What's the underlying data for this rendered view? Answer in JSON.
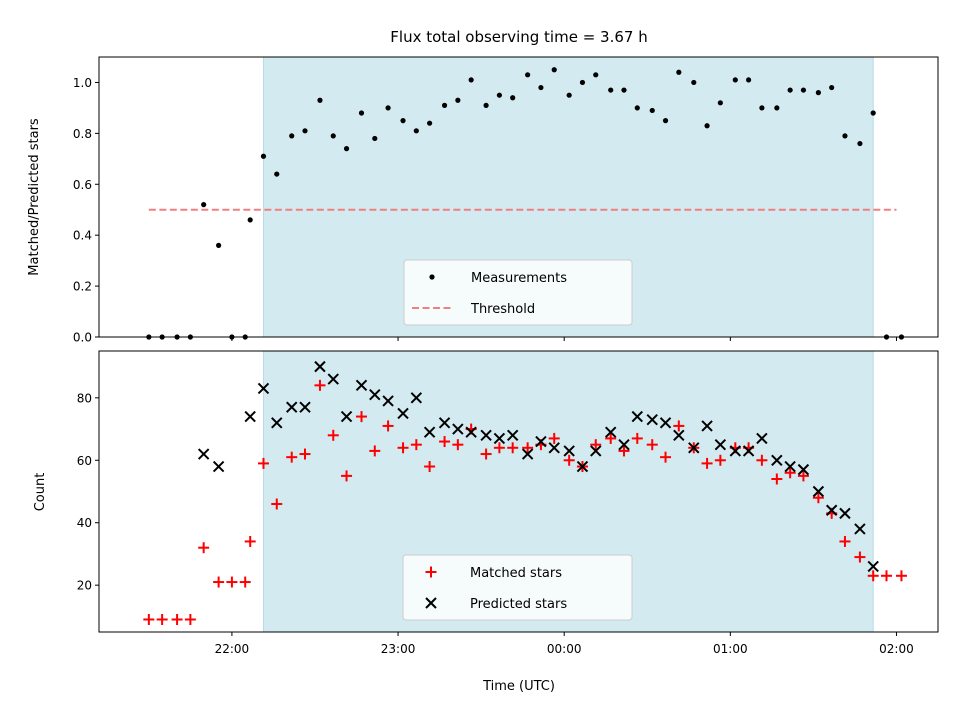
{
  "chart_data": [
    {
      "type": "scatter",
      "title": "Flux total observing time = 3.67 h",
      "xlabel": "",
      "ylabel": "Matched/Predicted stars",
      "xlim_hours": [
        21.2,
        26.25
      ],
      "ylim": [
        0,
        1.1
      ],
      "yticks": [
        0.0,
        0.2,
        0.4,
        0.6,
        0.8,
        1.0
      ],
      "ytick_labels": [
        "0.0",
        "0.2",
        "0.4",
        "0.6",
        "0.8",
        "1.0"
      ],
      "xticks_hours": [
        22,
        23,
        24,
        25,
        26
      ],
      "shaded_span_hours": [
        22.19,
        25.86
      ],
      "shaded_color": "#d3eaf0",
      "threshold": {
        "label": "Threshold",
        "value": 0.5,
        "x_range_hours": [
          21.5,
          26.0
        ],
        "color": "#f08080"
      },
      "legend": {
        "placement": "lower-center",
        "entries": [
          "Measurements",
          "Threshold"
        ]
      },
      "series": [
        {
          "name": "Measurements",
          "color": "#000000",
          "x": [
            21.5,
            21.58,
            21.67,
            21.75,
            21.83,
            21.92,
            22.0,
            22.08,
            22.11,
            22.19,
            22.27,
            22.36,
            22.44,
            22.53,
            22.61,
            22.69,
            22.78,
            22.86,
            22.94,
            23.03,
            23.11,
            23.19,
            23.28,
            23.36,
            23.44,
            23.53,
            23.61,
            23.69,
            23.78,
            23.86,
            23.94,
            24.03,
            24.11,
            24.19,
            24.28,
            24.36,
            24.44,
            24.53,
            24.61,
            24.69,
            24.78,
            24.86,
            24.94,
            25.03,
            25.11,
            25.19,
            25.28,
            25.36,
            25.44,
            25.53,
            25.61,
            25.69,
            25.78,
            25.86,
            25.94,
            26.03
          ],
          "y": [
            0.0,
            0.0,
            0.0,
            0.0,
            0.52,
            0.36,
            0.0,
            0.0,
            0.46,
            0.71,
            0.64,
            0.79,
            0.81,
            0.93,
            0.79,
            0.74,
            0.88,
            0.78,
            0.9,
            0.85,
            0.81,
            0.84,
            0.91,
            0.93,
            1.01,
            0.91,
            0.95,
            0.94,
            1.03,
            0.98,
            1.05,
            0.95,
            1.0,
            1.03,
            0.97,
            0.97,
            0.9,
            0.89,
            0.85,
            1.04,
            1.0,
            0.83,
            0.92,
            1.01,
            1.01,
            0.9,
            0.9,
            0.97,
            0.97,
            0.96,
            0.98,
            0.79,
            0.76,
            0.88,
            0.0,
            0.0
          ]
        }
      ]
    },
    {
      "type": "scatter",
      "title": "",
      "xlabel": "Time (UTC)",
      "ylabel": "Count",
      "xlim_hours": [
        21.2,
        26.25
      ],
      "ylim": [
        5,
        95
      ],
      "yticks": [
        20,
        40,
        60,
        80
      ],
      "ytick_labels": [
        "20",
        "40",
        "60",
        "80"
      ],
      "xticks_hours": [
        22,
        23,
        24,
        25,
        26
      ],
      "xtick_labels": [
        "22:00",
        "23:00",
        "00:00",
        "01:00",
        "02:00"
      ],
      "shaded_span_hours": [
        22.19,
        25.86
      ],
      "shaded_color": "#d3eaf0",
      "legend": {
        "placement": "lower-center",
        "entries": [
          "Matched stars",
          "Predicted stars"
        ]
      },
      "series": [
        {
          "name": "Matched stars",
          "marker": "plus",
          "color": "#ff0000",
          "x": [
            21.5,
            21.58,
            21.67,
            21.75,
            21.83,
            21.92,
            22.0,
            22.08,
            22.11,
            22.19,
            22.27,
            22.36,
            22.44,
            22.53,
            22.61,
            22.69,
            22.78,
            22.86,
            22.94,
            23.03,
            23.11,
            23.19,
            23.28,
            23.36,
            23.44,
            23.53,
            23.61,
            23.69,
            23.78,
            23.86,
            23.94,
            24.03,
            24.11,
            24.19,
            24.28,
            24.36,
            24.44,
            24.53,
            24.61,
            24.69,
            24.78,
            24.86,
            24.94,
            25.03,
            25.11,
            25.19,
            25.28,
            25.36,
            25.44,
            25.53,
            25.61,
            25.69,
            25.78,
            25.86,
            25.94,
            26.03
          ],
          "y": [
            9,
            9,
            9,
            9,
            32,
            21,
            21,
            21,
            34,
            59,
            46,
            61,
            62,
            84,
            68,
            55,
            74,
            63,
            71,
            64,
            65,
            58,
            66,
            65,
            70,
            62,
            64,
            64,
            64,
            65,
            67,
            60,
            58,
            65,
            67,
            63,
            67,
            65,
            61,
            71,
            64,
            59,
            60,
            64,
            64,
            60,
            54,
            56,
            55,
            48,
            43,
            34,
            29,
            23,
            23,
            23
          ]
        },
        {
          "name": "Predicted stars",
          "marker": "x",
          "color": "#000000",
          "x": [
            21.83,
            21.92,
            22.11,
            22.19,
            22.27,
            22.36,
            22.44,
            22.53,
            22.61,
            22.69,
            22.78,
            22.86,
            22.94,
            23.03,
            23.11,
            23.19,
            23.28,
            23.36,
            23.44,
            23.53,
            23.61,
            23.69,
            23.78,
            23.86,
            23.94,
            24.03,
            24.11,
            24.19,
            24.28,
            24.36,
            24.44,
            24.53,
            24.61,
            24.69,
            24.78,
            24.86,
            24.94,
            25.03,
            25.11,
            25.19,
            25.28,
            25.36,
            25.44,
            25.53,
            25.61,
            25.69,
            25.78,
            25.86
          ],
          "y": [
            62,
            58,
            74,
            83,
            72,
            77,
            77,
            90,
            86,
            74,
            84,
            81,
            79,
            75,
            80,
            69,
            72,
            70,
            69,
            68,
            67,
            68,
            62,
            66,
            64,
            63,
            58,
            63,
            69,
            65,
            74,
            73,
            72,
            68,
            64,
            71,
            65,
            63,
            63,
            67,
            60,
            58,
            57,
            50,
            44,
            43,
            38,
            26
          ]
        }
      ]
    }
  ]
}
